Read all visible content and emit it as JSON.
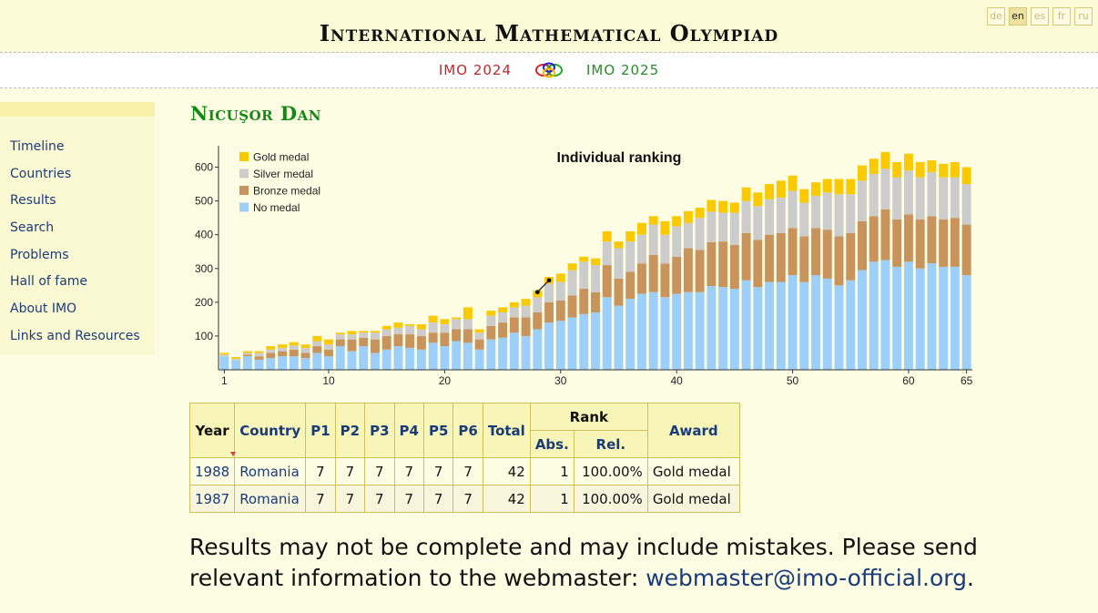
{
  "header": {
    "title": "International Mathematical Olympiad",
    "languages": [
      "de",
      "en",
      "es",
      "fr",
      "ru"
    ],
    "active_language": "en"
  },
  "subbar": {
    "prev": "IMO 2024",
    "next": "IMO 2025"
  },
  "nav": [
    "Timeline",
    "Countries",
    "Results",
    "Search",
    "Problems",
    "Hall of fame",
    "About IMO",
    "Links and Resources"
  ],
  "person": {
    "name": "Nicuşor Dan"
  },
  "chart_data": {
    "type": "bar",
    "stacked": true,
    "title": "Individual ranking",
    "xlabel": "",
    "ylabel": "",
    "x_ticks": [
      1,
      10,
      20,
      30,
      40,
      50,
      60,
      65
    ],
    "y_ticks": [
      100,
      200,
      300,
      400,
      500,
      600
    ],
    "ylim": [
      0,
      650
    ],
    "legend_position": "top-left",
    "colors": {
      "gold": "#fac900",
      "silver": "#cccccc",
      "bronze": "#c9935c",
      "none": "#9dcffb"
    },
    "x": [
      1,
      2,
      3,
      4,
      5,
      6,
      7,
      8,
      9,
      10,
      11,
      12,
      13,
      14,
      15,
      16,
      17,
      18,
      19,
      20,
      21,
      22,
      23,
      24,
      25,
      26,
      27,
      28,
      29,
      30,
      31,
      32,
      33,
      34,
      35,
      36,
      37,
      38,
      39,
      40,
      41,
      42,
      43,
      44,
      45,
      46,
      47,
      48,
      49,
      50,
      51,
      52,
      53,
      54,
      55,
      56,
      57,
      58,
      59,
      60,
      61,
      62,
      63,
      64,
      65
    ],
    "series": [
      {
        "name": "No medal",
        "key": "none",
        "values": [
          40,
          28,
          40,
          30,
          35,
          40,
          40,
          35,
          50,
          40,
          70,
          55,
          70,
          50,
          60,
          70,
          65,
          60,
          80,
          70,
          85,
          80,
          60,
          90,
          95,
          110,
          100,
          120,
          140,
          145,
          155,
          165,
          170,
          215,
          190,
          210,
          225,
          230,
          215,
          225,
          230,
          230,
          248,
          245,
          240,
          265,
          245,
          260,
          260,
          280,
          260,
          280,
          270,
          250,
          265,
          295,
          320,
          325,
          305,
          320,
          300,
          315,
          305,
          305,
          280
        ]
      },
      {
        "name": "Bronze medal",
        "key": "bronze",
        "values": [
          0,
          0,
          5,
          10,
          15,
          15,
          20,
          15,
          20,
          20,
          20,
          35,
          25,
          40,
          40,
          35,
          40,
          40,
          30,
          40,
          35,
          40,
          30,
          40,
          45,
          45,
          55,
          50,
          60,
          60,
          65,
          75,
          60,
          95,
          80,
          80,
          90,
          110,
          100,
          110,
          130,
          125,
          130,
          135,
          130,
          140,
          140,
          140,
          145,
          140,
          135,
          140,
          145,
          145,
          140,
          145,
          135,
          150,
          140,
          140,
          145,
          140,
          140,
          145,
          150
        ]
      },
      {
        "name": "Silver medal",
        "key": "silver",
        "values": [
          5,
          5,
          5,
          10,
          10,
          10,
          12,
          15,
          15,
          15,
          15,
          15,
          15,
          20,
          20,
          20,
          25,
          20,
          30,
          25,
          30,
          30,
          20,
          30,
          30,
          30,
          35,
          45,
          55,
          55,
          75,
          80,
          80,
          70,
          90,
          90,
          85,
          90,
          85,
          90,
          75,
          95,
          90,
          85,
          95,
          95,
          100,
          105,
          105,
          110,
          100,
          95,
          110,
          125,
          115,
          120,
          125,
          120,
          125,
          130,
          125,
          130,
          125,
          120,
          120
        ]
      },
      {
        "name": "Gold medal",
        "key": "gold",
        "values": [
          5,
          5,
          5,
          5,
          10,
          10,
          10,
          10,
          15,
          15,
          5,
          10,
          5,
          5,
          10,
          15,
          5,
          15,
          20,
          15,
          5,
          35,
          10,
          15,
          15,
          15,
          20,
          20,
          20,
          25,
          20,
          15,
          20,
          30,
          20,
          30,
          35,
          25,
          40,
          30,
          35,
          30,
          35,
          35,
          30,
          40,
          40,
          45,
          50,
          45,
          40,
          40,
          40,
          45,
          45,
          45,
          45,
          50,
          45,
          50,
          45,
          35,
          40,
          45,
          50
        ]
      }
    ],
    "highlight_line": [
      {
        "x": 28,
        "y": 230
      },
      {
        "x": 29,
        "y": 265
      }
    ]
  },
  "table": {
    "headers": {
      "year": "Year",
      "country": "Country",
      "problems": [
        "P1",
        "P2",
        "P3",
        "P4",
        "P5",
        "P6"
      ],
      "total": "Total",
      "rank": "Rank",
      "abs": "Abs.",
      "rel": "Rel.",
      "award": "Award"
    },
    "rows": [
      {
        "year": "1988",
        "country": "Romania",
        "scores": [
          "7",
          "7",
          "7",
          "7",
          "7",
          "7"
        ],
        "total": "42",
        "abs": "1",
        "rel": "100.00%",
        "award": "Gold medal"
      },
      {
        "year": "1987",
        "country": "Romania",
        "scores": [
          "7",
          "7",
          "7",
          "7",
          "7",
          "7"
        ],
        "total": "42",
        "abs": "1",
        "rel": "100.00%",
        "award": "Gold medal"
      }
    ]
  },
  "disclaimer": {
    "text": "Results may not be complete and may include mistakes. Please send relevant information to the webmaster: ",
    "email": "webmaster@imo-official.org",
    "end": "."
  }
}
